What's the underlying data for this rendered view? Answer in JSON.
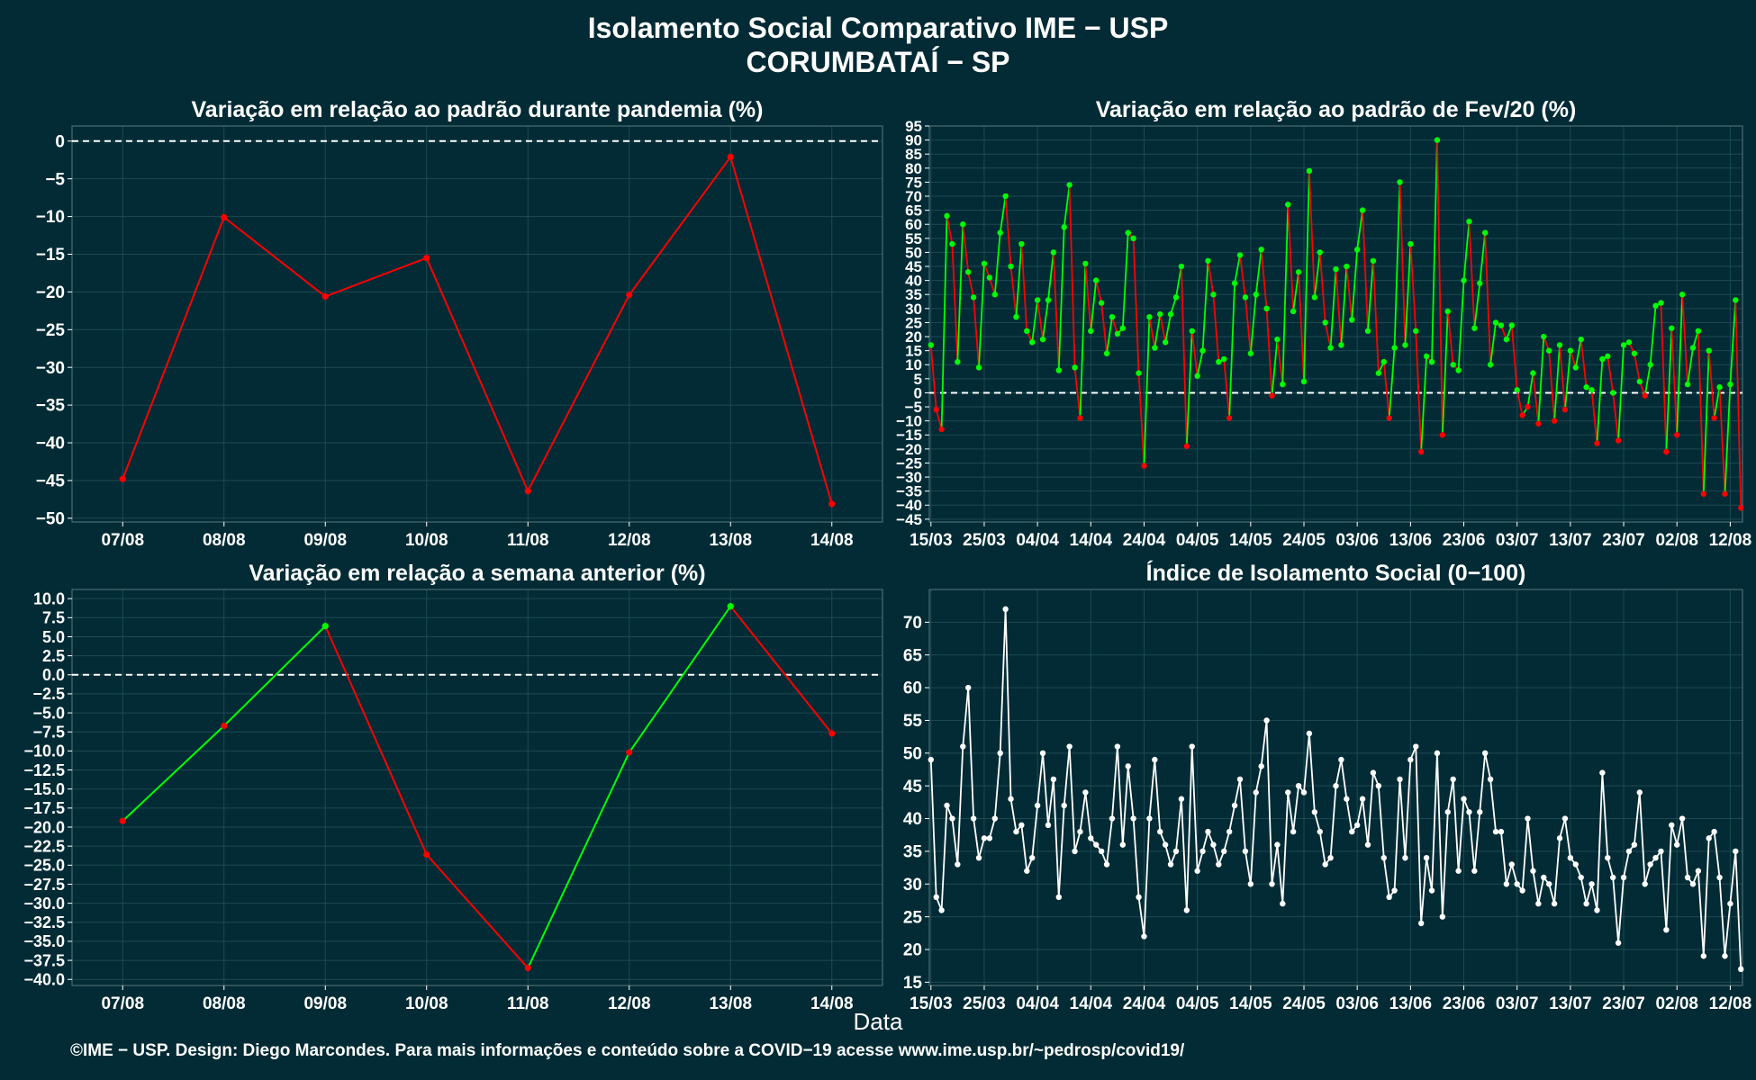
{
  "header": {
    "title": "Isolamento Social Comparativo IME − USP",
    "subtitle": "CORUMBATAÍ − SP"
  },
  "xlabel": "Data",
  "footer": "©IME − USP. Design: Diego Marcondes. Para mais informações e conteúdo sobre a COVID−19 acesse www.ime.usp.br/~pedrosp/covid19/",
  "colors": {
    "background": "#022b35",
    "negative": "#ff0000",
    "positive": "#00ff00",
    "index_line": "#ffffff",
    "grid": "#1d4a52"
  },
  "chart_data": [
    {
      "id": "p1",
      "type": "line",
      "title": "Variação em relação ao padrão durante pandemia (%)",
      "categories": [
        "07/08",
        "08/08",
        "09/08",
        "10/08",
        "11/08",
        "12/08",
        "13/08",
        "14/08"
      ],
      "values": [
        -44.8,
        -10.1,
        -20.6,
        -15.5,
        -46.4,
        -20.4,
        -2.1,
        -48.1
      ],
      "ylim": [
        -50.5,
        2
      ],
      "yticks": [
        0,
        -5,
        -10,
        -15,
        -20,
        -25,
        -30,
        -35,
        -40,
        -45,
        -50
      ],
      "reference_line": 0,
      "color_mode": "single",
      "grid": true
    },
    {
      "id": "p2",
      "type": "line",
      "title": "Variação em relação ao padrão de Fev/20 (%)",
      "x_start": "15/03",
      "xtick_labels": [
        "15/03",
        "25/03",
        "04/04",
        "14/04",
        "24/04",
        "04/05",
        "14/05",
        "24/05",
        "03/06",
        "13/06",
        "23/06",
        "03/07",
        "13/07",
        "23/07",
        "02/08",
        "12/08"
      ],
      "xtick_step_days": 10,
      "values": [
        17,
        -6,
        -13,
        63,
        53,
        11,
        60,
        43,
        34,
        9,
        46,
        41,
        35,
        57,
        70,
        45,
        27,
        53,
        22,
        18,
        33,
        19,
        33,
        50,
        8,
        59,
        74,
        9,
        -9,
        46,
        22,
        40,
        32,
        14,
        27,
        21,
        23,
        57,
        55,
        7,
        -26,
        27,
        16,
        28,
        18,
        28,
        34,
        45,
        -19,
        22,
        6,
        15,
        47,
        35,
        11,
        12,
        -9,
        39,
        49,
        34,
        14,
        35,
        51,
        30,
        -1,
        19,
        3,
        67,
        29,
        43,
        4,
        79,
        34,
        50,
        25,
        16,
        44,
        17,
        45,
        26,
        51,
        65,
        22,
        47,
        7,
        11,
        -9,
        16,
        75,
        17,
        53,
        22,
        -21,
        13,
        11,
        90,
        -15,
        29,
        10,
        8,
        40,
        61,
        23,
        39,
        57,
        10,
        25,
        24,
        19,
        24,
        1,
        -8,
        -5,
        7,
        -11,
        20,
        15,
        -10,
        17,
        -6,
        15,
        9,
        19,
        2,
        1,
        -18,
        12,
        13,
        0,
        -17,
        17,
        18,
        14,
        4,
        -1,
        10,
        31,
        32,
        -21,
        23,
        -15,
        35,
        3,
        16,
        22,
        -36,
        15,
        -9,
        2,
        -36,
        3,
        33,
        -41
      ],
      "ylim": [
        -46,
        95
      ],
      "yticks": [
        95,
        90,
        85,
        80,
        75,
        70,
        65,
        60,
        55,
        50,
        45,
        40,
        35,
        30,
        25,
        20,
        15,
        10,
        5,
        0,
        -5,
        -10,
        -15,
        -20,
        -25,
        -30,
        -35,
        -40,
        -45
      ],
      "reference_line": 0,
      "color_mode": "by-change",
      "grid": true
    },
    {
      "id": "p3",
      "type": "line",
      "title": "Variação em relação a semana anterior (%)",
      "categories": [
        "07/08",
        "08/08",
        "09/08",
        "10/08",
        "11/08",
        "12/08",
        "13/08",
        "14/08"
      ],
      "values": [
        -19.2,
        -6.7,
        6.4,
        -23.6,
        -38.5,
        -10.2,
        9.0,
        -7.7
      ],
      "ylim": [
        -40.8,
        11.2
      ],
      "yticks": [
        10.0,
        7.5,
        5.0,
        2.5,
        0.0,
        -2.5,
        -5.0,
        -7.5,
        -10.0,
        -12.5,
        -15.0,
        -17.5,
        -20.0,
        -22.5,
        -25.0,
        -27.5,
        -30.0,
        -32.5,
        -35.0,
        -37.5,
        -40.0
      ],
      "reference_line": 0,
      "color_mode": "by-change",
      "grid": true
    },
    {
      "id": "p4",
      "type": "line",
      "title": "Índice de Isolamento Social (0−100)",
      "x_start": "15/03",
      "xtick_labels": [
        "15/03",
        "25/03",
        "04/04",
        "14/04",
        "24/04",
        "04/05",
        "14/05",
        "24/05",
        "03/06",
        "13/06",
        "23/06",
        "03/07",
        "13/07",
        "23/07",
        "02/08",
        "12/08"
      ],
      "xtick_step_days": 10,
      "values": [
        49,
        28,
        26,
        42,
        40,
        33,
        51,
        60,
        40,
        34,
        37,
        37,
        40,
        50,
        72,
        43,
        38,
        39,
        32,
        34,
        42,
        50,
        39,
        46,
        28,
        42,
        51,
        35,
        38,
        44,
        37,
        36,
        35,
        33,
        40,
        51,
        36,
        48,
        40,
        28,
        22,
        40,
        49,
        38,
        36,
        33,
        35,
        43,
        26,
        51,
        32,
        35,
        38,
        36,
        33,
        35,
        38,
        42,
        46,
        35,
        30,
        44,
        48,
        55,
        30,
        36,
        27,
        44,
        38,
        45,
        44,
        53,
        41,
        38,
        33,
        34,
        45,
        49,
        43,
        38,
        39,
        43,
        36,
        47,
        45,
        34,
        28,
        29,
        46,
        34,
        49,
        51,
        24,
        34,
        29,
        50,
        25,
        41,
        46,
        32,
        43,
        41,
        32,
        41,
        50,
        46,
        38,
        38,
        30,
        33,
        30,
        29,
        40,
        32,
        27,
        31,
        30,
        27,
        37,
        40,
        34,
        33,
        31,
        27,
        30,
        26,
        47,
        34,
        31,
        21,
        31,
        35,
        36,
        44,
        30,
        33,
        34,
        35,
        23,
        39,
        36,
        40,
        31,
        30,
        32,
        19,
        37,
        38,
        31,
        19,
        27,
        35,
        17
      ],
      "ylim": [
        14.5,
        75
      ],
      "yticks": [
        70,
        65,
        60,
        55,
        50,
        45,
        40,
        35,
        30,
        25,
        20,
        15
      ],
      "color_mode": "single",
      "grid": true
    }
  ]
}
